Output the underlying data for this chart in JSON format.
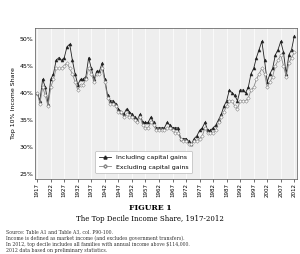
{
  "title_bold": "FIGURE 1",
  "title_main": "The Top Decile Income Share, 1917-2012",
  "ylabel": "Top 10% Income Share",
  "source_text": "Source: Table A1 and Table A3, col. P90-100.\nIncome is defined as market income (and excludes government transfers).\nIn 2012, top decile includes all families with annual income above $114,000.\n2012 data based on preliminary statistics.",
  "legend_incl": "Including capital gains",
  "legend_excl": "Excluding capital gains",
  "ylim": [
    24,
    52
  ],
  "yticks": [
    25,
    30,
    35,
    40,
    45,
    50
  ],
  "ytick_labels": [
    "25%",
    "30%",
    "35%",
    "40%",
    "45%",
    "50%"
  ],
  "xticks": [
    1917,
    1922,
    1927,
    1932,
    1937,
    1942,
    1947,
    1952,
    1957,
    1962,
    1967,
    1972,
    1977,
    1982,
    1987,
    1992,
    1997,
    2002,
    2007,
    2012
  ],
  "xlim": [
    1916,
    2013
  ],
  "background": "#e8e8e8",
  "plot_bg": "#eeeeee",
  "line_color": "#222222",
  "years_incl": [
    1917,
    1918,
    1919,
    1920,
    1921,
    1922,
    1923,
    1924,
    1925,
    1926,
    1927,
    1928,
    1929,
    1930,
    1931,
    1932,
    1933,
    1934,
    1935,
    1936,
    1937,
    1938,
    1939,
    1940,
    1941,
    1942,
    1943,
    1944,
    1945,
    1946,
    1947,
    1948,
    1949,
    1950,
    1951,
    1952,
    1953,
    1954,
    1955,
    1956,
    1957,
    1958,
    1959,
    1960,
    1961,
    1962,
    1963,
    1964,
    1965,
    1966,
    1967,
    1968,
    1969,
    1970,
    1971,
    1972,
    1973,
    1974,
    1975,
    1976,
    1977,
    1978,
    1979,
    1980,
    1981,
    1982,
    1983,
    1984,
    1985,
    1986,
    1987,
    1988,
    1989,
    1990,
    1991,
    1992,
    1993,
    1994,
    1995,
    1996,
    1997,
    1998,
    1999,
    2000,
    2001,
    2002,
    2003,
    2004,
    2005,
    2006,
    2007,
    2008,
    2009,
    2010,
    2011,
    2012
  ],
  "values_incl": [
    40.0,
    38.5,
    42.5,
    41.0,
    38.0,
    42.5,
    43.5,
    46.0,
    46.5,
    46.0,
    46.5,
    48.5,
    49.0,
    46.0,
    43.5,
    41.5,
    42.5,
    42.5,
    43.0,
    46.5,
    44.5,
    42.5,
    44.0,
    44.0,
    45.5,
    42.5,
    39.5,
    38.5,
    38.5,
    38.0,
    37.0,
    36.5,
    36.0,
    37.0,
    36.5,
    36.0,
    35.5,
    35.0,
    36.0,
    34.5,
    34.5,
    34.5,
    35.5,
    34.5,
    33.5,
    33.5,
    33.5,
    33.5,
    34.5,
    34.0,
    33.5,
    33.5,
    33.5,
    31.5,
    31.5,
    31.5,
    31.0,
    30.5,
    31.5,
    32.0,
    33.0,
    33.5,
    34.5,
    33.0,
    33.0,
    33.5,
    34.0,
    35.0,
    36.0,
    37.5,
    38.5,
    40.5,
    40.0,
    39.5,
    38.5,
    40.5,
    40.5,
    40.0,
    41.0,
    43.5,
    44.5,
    46.5,
    48.0,
    49.5,
    46.0,
    42.0,
    43.5,
    44.5,
    47.0,
    48.0,
    49.5,
    47.5,
    43.5,
    47.0,
    48.0,
    50.5
  ],
  "years_excl": [
    1917,
    1918,
    1919,
    1920,
    1921,
    1922,
    1923,
    1924,
    1925,
    1926,
    1927,
    1928,
    1929,
    1930,
    1931,
    1932,
    1933,
    1934,
    1935,
    1936,
    1937,
    1938,
    1939,
    1940,
    1941,
    1942,
    1943,
    1944,
    1945,
    1946,
    1947,
    1948,
    1949,
    1950,
    1951,
    1952,
    1953,
    1954,
    1955,
    1956,
    1957,
    1958,
    1959,
    1960,
    1961,
    1962,
    1963,
    1964,
    1965,
    1966,
    1967,
    1968,
    1969,
    1970,
    1971,
    1972,
    1973,
    1974,
    1975,
    1976,
    1977,
    1978,
    1979,
    1980,
    1981,
    1982,
    1983,
    1984,
    1985,
    1986,
    1987,
    1988,
    1989,
    1990,
    1991,
    1992,
    1993,
    1994,
    1995,
    1996,
    1997,
    1998,
    1999,
    2000,
    2001,
    2002,
    2003,
    2004,
    2005,
    2006,
    2007,
    2008,
    2009,
    2010,
    2011,
    2012
  ],
  "values_excl": [
    40.0,
    38.0,
    41.0,
    39.5,
    37.5,
    41.0,
    42.5,
    44.5,
    44.5,
    44.5,
    45.0,
    45.5,
    44.5,
    43.5,
    42.0,
    40.5,
    41.5,
    41.5,
    42.5,
    44.5,
    43.5,
    42.0,
    43.5,
    43.5,
    44.5,
    42.0,
    39.0,
    38.0,
    38.0,
    37.5,
    36.5,
    36.5,
    35.5,
    36.0,
    35.5,
    35.5,
    35.0,
    34.5,
    35.5,
    34.0,
    33.5,
    33.5,
    34.5,
    34.0,
    33.0,
    33.0,
    33.0,
    33.0,
    33.5,
    33.5,
    33.0,
    32.5,
    32.5,
    31.5,
    31.0,
    31.0,
    30.5,
    30.5,
    31.0,
    31.0,
    31.5,
    32.0,
    33.5,
    32.5,
    32.5,
    32.5,
    33.0,
    34.5,
    35.5,
    36.5,
    37.5,
    38.5,
    38.5,
    37.5,
    37.0,
    38.5,
    38.5,
    38.5,
    39.0,
    40.5,
    41.0,
    42.5,
    43.5,
    44.5,
    43.5,
    41.0,
    42.0,
    43.0,
    45.0,
    46.0,
    47.0,
    45.0,
    43.0,
    45.5,
    46.5,
    47.5
  ]
}
